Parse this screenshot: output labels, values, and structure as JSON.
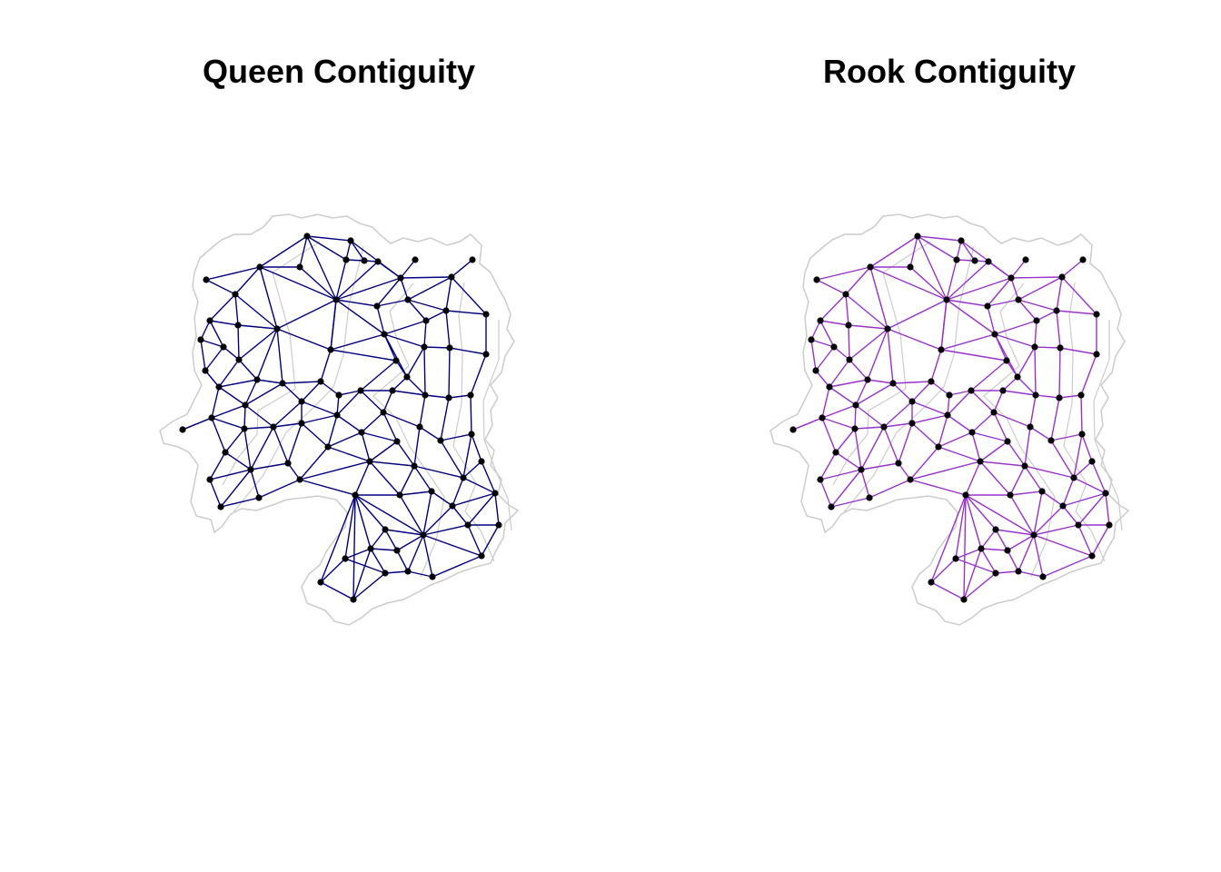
{
  "figure": {
    "panels": [
      {
        "id": "queen",
        "title": "Queen Contiguity",
        "edge_color": "#000080",
        "node_color": "#000000",
        "outline_color": "#cccccc"
      },
      {
        "id": "rook",
        "title": "Rook Contiguity",
        "edge_color": "#9932cc",
        "node_color": "#000000",
        "outline_color": "#cccccc"
      }
    ]
  }
}
